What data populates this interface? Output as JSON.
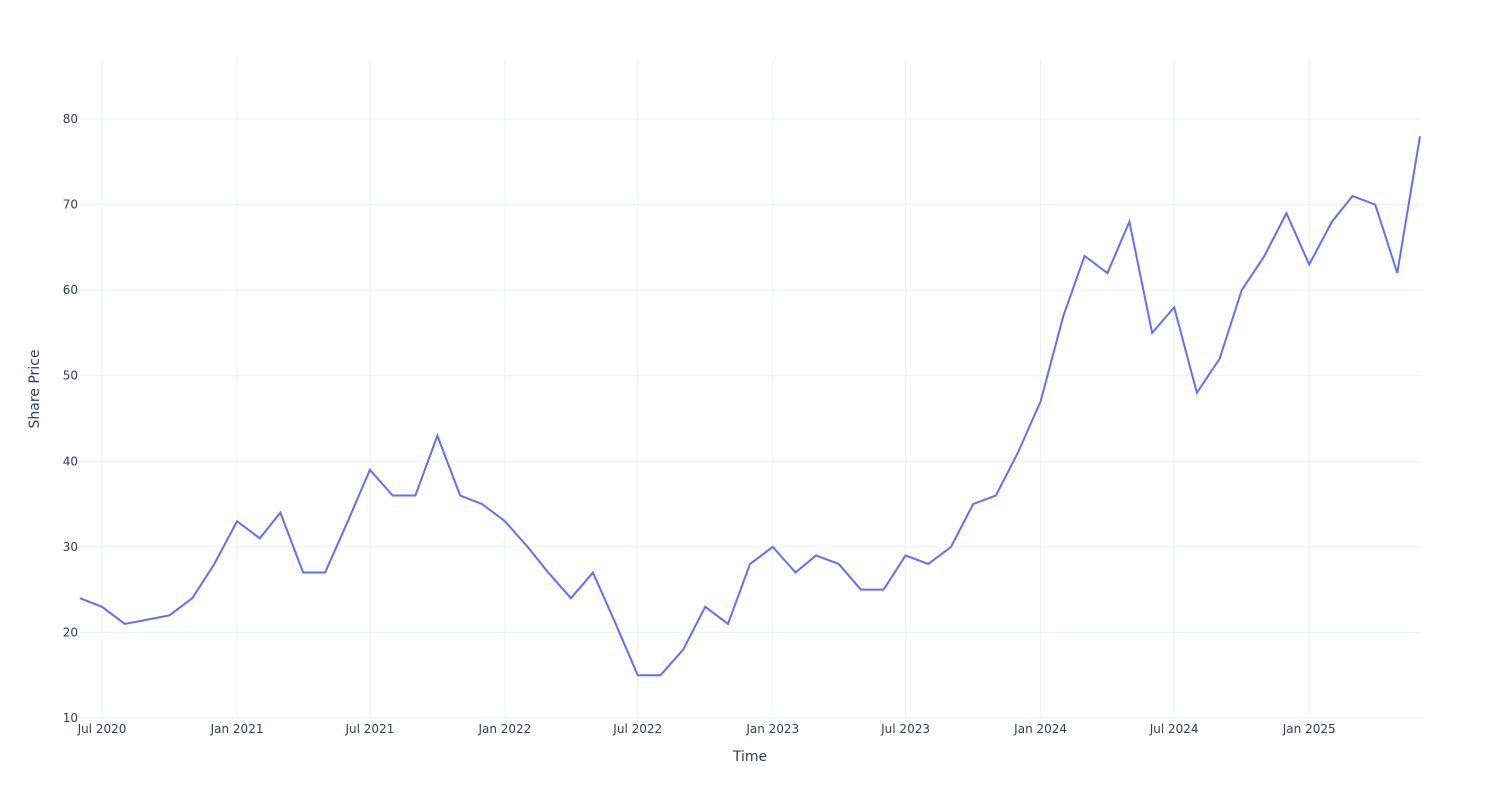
{
  "chart_data": {
    "type": "line",
    "x_label": "Time",
    "y_label": "Share Price",
    "x": [
      "2020-06",
      "2020-07",
      "2020-08",
      "2020-09",
      "2020-10",
      "2020-11",
      "2020-12",
      "2021-01",
      "2021-02",
      "2021-03",
      "2021-04",
      "2021-05",
      "2021-06",
      "2021-07",
      "2021-08",
      "2021-09",
      "2021-10",
      "2021-11",
      "2021-12",
      "2022-01",
      "2022-02",
      "2022-03",
      "2022-04",
      "2022-05",
      "2022-06",
      "2022-07",
      "2022-08",
      "2022-09",
      "2022-10",
      "2022-11",
      "2022-12",
      "2023-01",
      "2023-02",
      "2023-03",
      "2023-04",
      "2023-05",
      "2023-06",
      "2023-07",
      "2023-08",
      "2023-09",
      "2023-10",
      "2023-11",
      "2023-12",
      "2024-01",
      "2024-02",
      "2024-03",
      "2024-04",
      "2024-05",
      "2024-06",
      "2024-07",
      "2024-08",
      "2024-09",
      "2024-10",
      "2024-11",
      "2024-12",
      "2025-01",
      "2025-02",
      "2025-03",
      "2025-04",
      "2025-05",
      "2025-06"
    ],
    "series": [
      {
        "color": "#636efa",
        "values": [
          24,
          23,
          21,
          21.5,
          22,
          24,
          28,
          33,
          31,
          34,
          27,
          27,
          33,
          39,
          36,
          36,
          43,
          36,
          35,
          33,
          30,
          27,
          24,
          27,
          21,
          15,
          15,
          18,
          23,
          21,
          28,
          30,
          27,
          29,
          28,
          25,
          25,
          29,
          28,
          30,
          35,
          36,
          41,
          47,
          57,
          64,
          62,
          68,
          55,
          58,
          48,
          52,
          60,
          64,
          69,
          63,
          68,
          71,
          70,
          62,
          78
        ]
      }
    ],
    "xlim": [
      "2020-06",
      "2025-06"
    ],
    "xticks": [
      {
        "value": "2020-07",
        "label": "Jul 2020"
      },
      {
        "value": "2021-01",
        "label": "Jan 2021"
      },
      {
        "value": "2021-07",
        "label": "Jul 2021"
      },
      {
        "value": "2022-01",
        "label": "Jan 2022"
      },
      {
        "value": "2022-07",
        "label": "Jul 2022"
      },
      {
        "value": "2023-01",
        "label": "Jan 2023"
      },
      {
        "value": "2023-07",
        "label": "Jul 2023"
      },
      {
        "value": "2024-01",
        "label": "Jan 2024"
      },
      {
        "value": "2024-07",
        "label": "Jul 2024"
      },
      {
        "value": "2025-01",
        "label": "Jan 2025"
      }
    ],
    "ylim": [
      10,
      86.9
    ],
    "yticks": [
      10,
      20,
      30,
      40,
      50,
      60,
      70,
      80
    ],
    "grid": true
  }
}
